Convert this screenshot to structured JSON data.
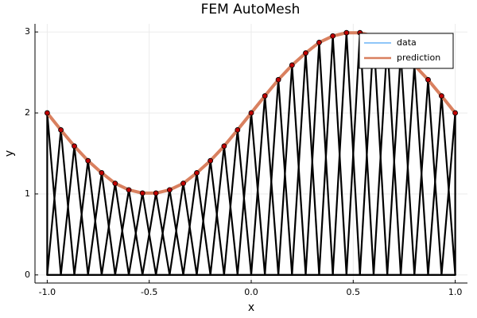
{
  "chart_data": {
    "type": "line",
    "title": "FEM AutoMesh",
    "x_label": "x",
    "y_label": "y",
    "x": [
      -1,
      -0.933,
      -0.867,
      -0.8,
      -0.733,
      -0.667,
      -0.6,
      -0.533,
      -0.467,
      -0.4,
      -0.333,
      -0.267,
      -0.2,
      -0.133,
      -0.067,
      0,
      0.067,
      0.133,
      0.2,
      0.267,
      0.333,
      0.4,
      0.467,
      0.533,
      0.6,
      0.667,
      0.733,
      0.8,
      0.867,
      0.933,
      1
    ],
    "series": [
      {
        "name": "data",
        "color": "#1f8ef1",
        "marker_color": "#c00000",
        "element_color": "#000000",
        "values": [
          2,
          1.79,
          1.59,
          1.41,
          1.26,
          1.13,
          1.05,
          1.01,
          1.01,
          1.05,
          1.13,
          1.26,
          1.41,
          1.59,
          1.79,
          2,
          2.21,
          2.41,
          2.59,
          2.74,
          2.87,
          2.95,
          2.99,
          2.99,
          2.95,
          2.87,
          2.74,
          2.59,
          2.41,
          2.21,
          2
        ]
      },
      {
        "name": "prediction",
        "color": "#d9805f",
        "values": [
          2,
          1.79,
          1.59,
          1.41,
          1.26,
          1.13,
          1.05,
          1.01,
          1.01,
          1.05,
          1.13,
          1.26,
          1.41,
          1.59,
          1.79,
          2,
          2.21,
          2.41,
          2.59,
          2.74,
          2.87,
          2.95,
          2.99,
          2.99,
          2.95,
          2.87,
          2.74,
          2.59,
          2.41,
          2.21,
          2
        ]
      }
    ],
    "xlim": [
      -1.06,
      1.06
    ],
    "ylim": [
      -0.1,
      3.1
    ],
    "xticks": [
      {
        "value": -1,
        "label": "-1.0"
      },
      {
        "value": -0.5,
        "label": "-0.5"
      },
      {
        "value": 0,
        "label": "0.0"
      },
      {
        "value": 0.5,
        "label": "0.5"
      },
      {
        "value": 1,
        "label": "1.0"
      }
    ],
    "yticks": [
      0,
      1,
      2,
      3
    ],
    "grid": true,
    "legend": "top-right"
  }
}
